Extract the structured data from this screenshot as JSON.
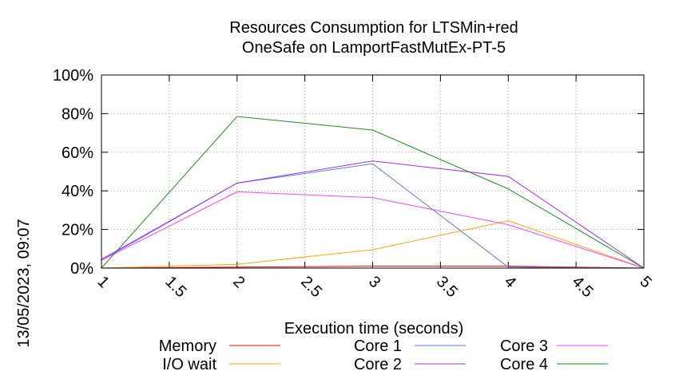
{
  "chart_data": {
    "type": "line",
    "title": "Resources Consumption for LTSMin+red",
    "subtitle": "OneSafe on LamportFastMutEx-PT-5",
    "xlabel": "Execution time (seconds)",
    "ylabel": "",
    "side_label": "13/05/2023, 09:07",
    "xlim": [
      1,
      5
    ],
    "ylim": [
      0,
      100
    ],
    "x_ticks": [
      "1",
      "1.5",
      "2",
      "2.5",
      "3",
      "3.5",
      "4",
      "4.5",
      "5"
    ],
    "x_tick_values": [
      1,
      1.5,
      2,
      2.5,
      3,
      3.5,
      4,
      4.5,
      5
    ],
    "y_ticks": [
      "0%",
      "20%",
      "40%",
      "60%",
      "80%",
      "100%"
    ],
    "y_tick_values": [
      0,
      20,
      40,
      60,
      80,
      100
    ],
    "grid": true,
    "legend_position": "bottom",
    "x": [
      1,
      2,
      3,
      4,
      5
    ],
    "series": [
      {
        "name": "Memory",
        "color": "#ff0000",
        "values": [
          0,
          0.5,
          1,
          1,
          0
        ]
      },
      {
        "name": "I/O wait",
        "color": "#ffa500",
        "values": [
          0,
          2,
          9.5,
          24.5,
          0
        ]
      },
      {
        "name": "Core 1",
        "color": "#5b7fd6",
        "values": [
          4,
          44,
          54,
          0.5,
          0
        ]
      },
      {
        "name": "Core 2",
        "color": "#a030f0",
        "values": [
          4.5,
          44,
          55.5,
          47.5,
          0
        ]
      },
      {
        "name": "Core 3",
        "color": "#ff40ff",
        "values": [
          4,
          39.5,
          36.5,
          22.5,
          0
        ]
      },
      {
        "name": "Core 4",
        "color": "#228b22",
        "values": [
          0,
          78.5,
          71.5,
          41,
          0
        ]
      }
    ]
  }
}
